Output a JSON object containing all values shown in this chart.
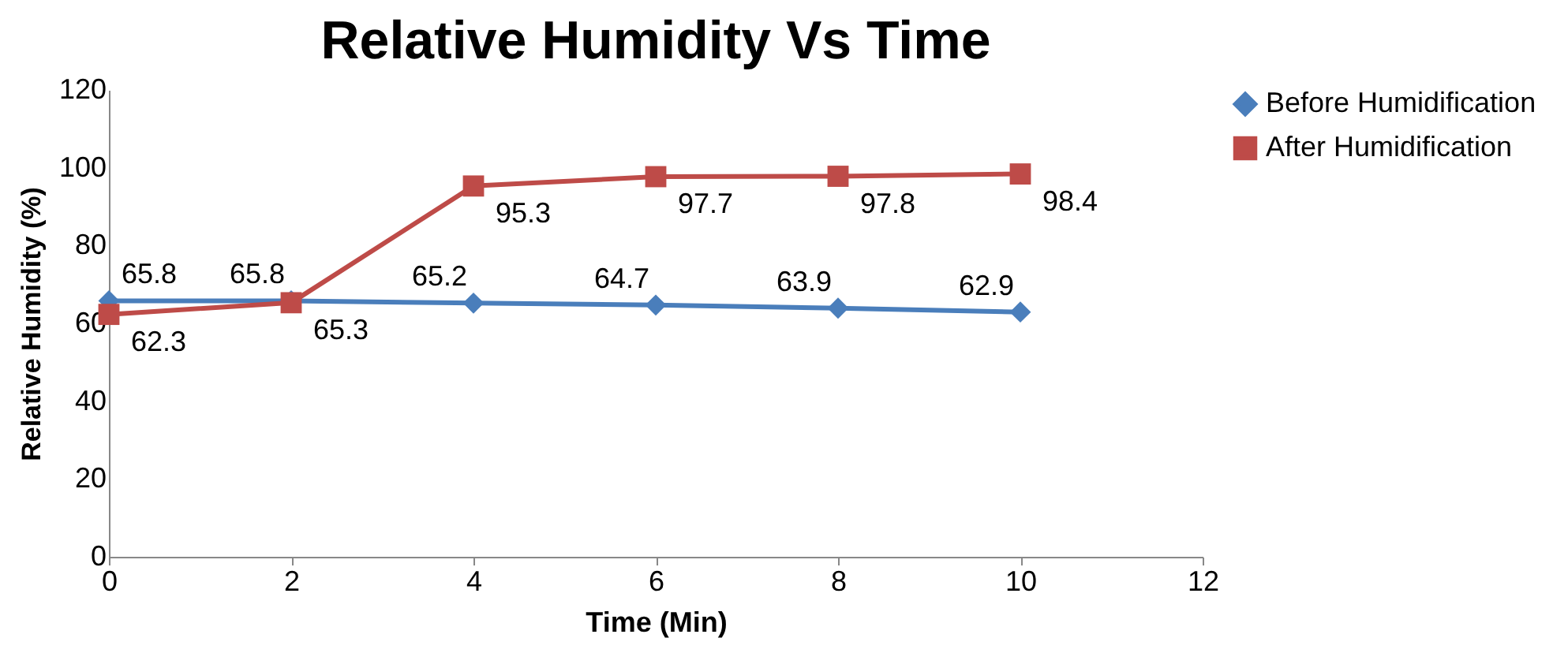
{
  "chart_data": {
    "type": "line",
    "title": "Relative Humidity Vs Time",
    "xlabel": "Time (Min)",
    "ylabel": "Relative Humidity (%)",
    "x": [
      0,
      2,
      4,
      6,
      8,
      10
    ],
    "series": [
      {
        "name": "Before Humidification",
        "color": "#4a7ebb",
        "marker": "diamond",
        "values": [
          65.8,
          65.8,
          65.2,
          64.7,
          63.9,
          62.9
        ]
      },
      {
        "name": "After Humidification",
        "color": "#be4b48",
        "marker": "square",
        "values": [
          62.3,
          65.3,
          95.3,
          97.7,
          97.8,
          98.4
        ]
      }
    ],
    "line_style": "solid",
    "xlim": [
      0,
      12
    ],
    "xticks": [
      0,
      2,
      4,
      6,
      8,
      10,
      12
    ],
    "ylim": [
      0,
      120
    ],
    "yticks": [
      0,
      20,
      40,
      60,
      80,
      100,
      120
    ],
    "grid": false,
    "legend": "right",
    "data_labels": true
  }
}
